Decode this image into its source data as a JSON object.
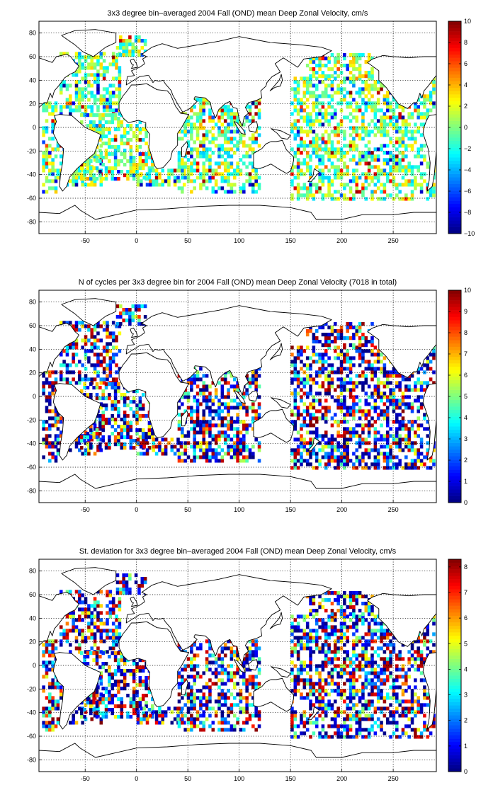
{
  "chart_data": [
    {
      "type": "heatmap",
      "title": "3x3 degree bin–averaged 2004 Fall (OND) mean Deep Zonal Velocity, cm/s",
      "xlabel": "",
      "ylabel": "",
      "xlim": [
        -95,
        292
      ],
      "ylim": [
        -90,
        90
      ],
      "xticks": [
        -50,
        0,
        50,
        100,
        150,
        200,
        250
      ],
      "yticks": [
        -80,
        -60,
        -40,
        -20,
        0,
        20,
        40,
        60,
        80
      ],
      "grid": true,
      "bin_size_deg": 3,
      "colormap": "jet",
      "colorbar": {
        "min": -10,
        "max": 10,
        "ticks": [
          -10,
          -8,
          -6,
          -4,
          -2,
          0,
          2,
          4,
          6,
          8,
          10
        ],
        "position": "right"
      }
    },
    {
      "type": "heatmap",
      "title": "N of cycles per 3x3 degree bin for 2004 Fall (OND) mean Deep Zonal Velocity (7018 in total)",
      "xlabel": "",
      "ylabel": "",
      "xlim": [
        -95,
        292
      ],
      "ylim": [
        -90,
        90
      ],
      "xticks": [
        -50,
        0,
        50,
        100,
        150,
        200,
        250
      ],
      "yticks": [
        -80,
        -60,
        -40,
        -20,
        0,
        20,
        40,
        60,
        80
      ],
      "grid": true,
      "bin_size_deg": 3,
      "colormap": "jet",
      "colorbar": {
        "min": 0,
        "max": 10,
        "ticks": [
          0,
          1,
          2,
          3,
          4,
          5,
          6,
          7,
          8,
          9,
          10
        ],
        "position": "right"
      }
    },
    {
      "type": "heatmap",
      "title": "St. deviation for 3x3 degree bin–averaged 2004 Fall (OND) mean Deep Zonal Velocity, cm/s",
      "xlabel": "",
      "ylabel": "",
      "xlim": [
        -95,
        292
      ],
      "ylim": [
        -90,
        90
      ],
      "xticks": [
        -50,
        0,
        50,
        100,
        150,
        200,
        250
      ],
      "yticks": [
        -80,
        -60,
        -40,
        -20,
        0,
        20,
        40,
        60,
        80
      ],
      "grid": true,
      "bin_size_deg": 3,
      "colormap": "jet",
      "colorbar": {
        "min": 0,
        "max": 8.3,
        "ticks": [
          0,
          1,
          2,
          3,
          4,
          5,
          6,
          7,
          8
        ],
        "position": "right"
      }
    }
  ],
  "coverage_regions": [
    {
      "lon": [
        -92,
        -78
      ],
      "lat": [
        -56,
        22
      ]
    },
    {
      "lon": [
        -78,
        -35
      ],
      "lat": [
        -50,
        -5
      ]
    },
    {
      "lon": [
        -75,
        -15
      ],
      "lat": [
        10,
        62
      ]
    },
    {
      "lon": [
        -55,
        15
      ],
      "lat": [
        -45,
        10
      ]
    },
    {
      "lon": [
        0,
        48
      ],
      "lat": [
        -50,
        -35
      ]
    },
    {
      "lon": [
        40,
        120
      ],
      "lat": [
        -56,
        25
      ]
    },
    {
      "lon": [
        150,
        290
      ],
      "lat": [
        -62,
        42
      ]
    },
    {
      "lon": [
        165,
        230
      ],
      "lat": [
        42,
        62
      ]
    },
    {
      "lon": [
        -20,
        10
      ],
      "lat": [
        60,
        76
      ]
    }
  ]
}
